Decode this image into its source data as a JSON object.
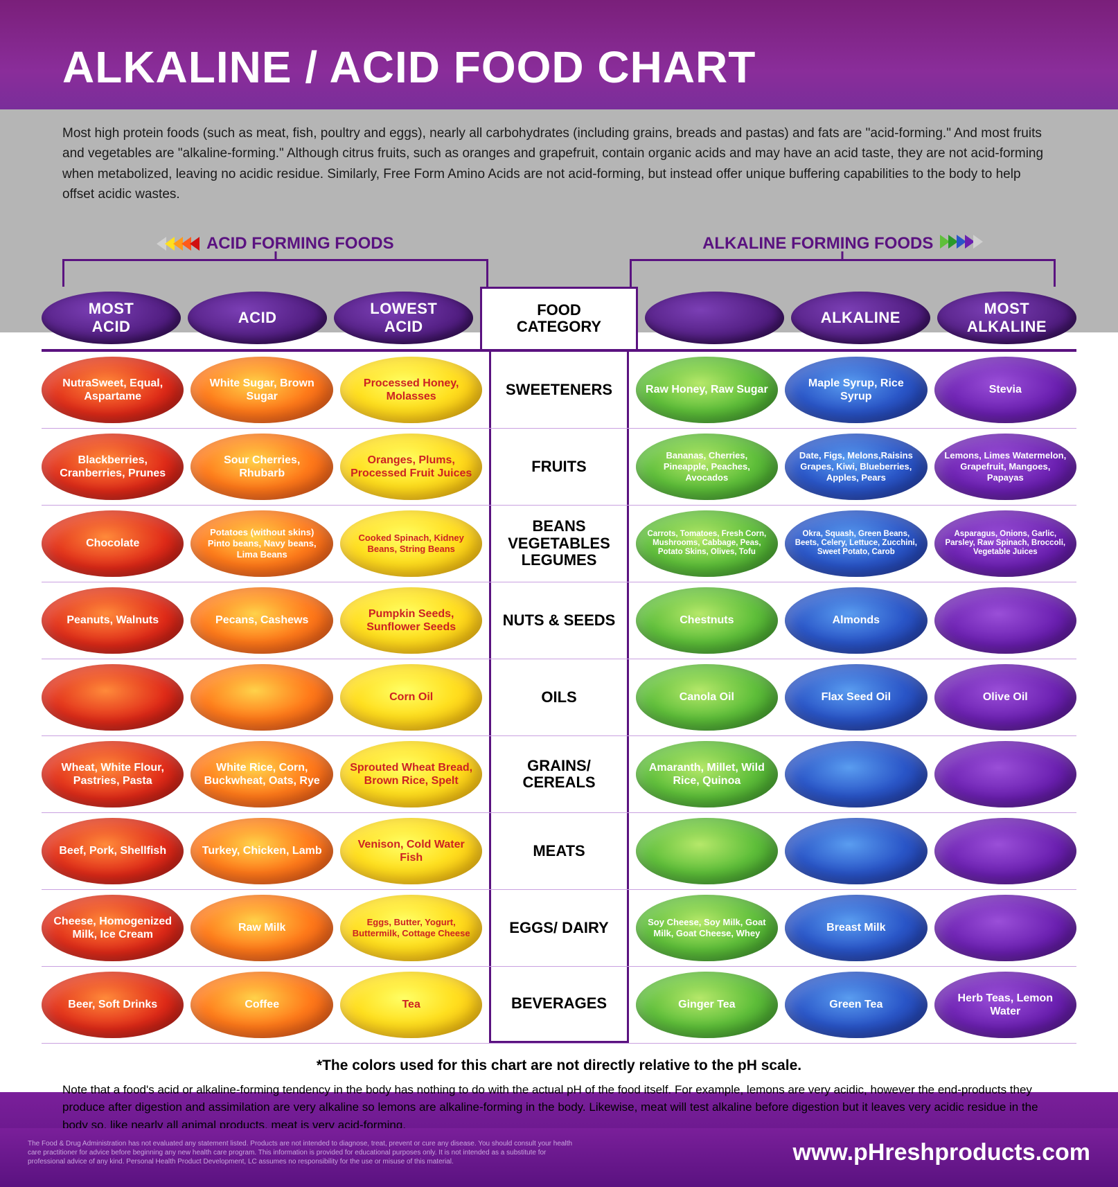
{
  "title": "ALKALINE / ACID FOOD CHART",
  "intro": "Most high protein foods (such as meat, fish, poultry and eggs), nearly all carbohydrates (including grains, breads and pastas) and fats are \"acid-forming.\" And most fruits and vegetables are \"alkaline-forming.\" Although citrus fruits, such as oranges and grapefruit, contain organic acids and may have an acid taste, they are not acid-forming when metabolized, leaving no acidic residue. Similarly, Free Form Amino Acids are not acid-forming, but instead offer unique buffering capabilities to the body to help offset acidic wastes.",
  "section_acid_label": "ACID FORMING FOODS",
  "section_alk_label": "ALKALINE FORMING FOODS",
  "headers": {
    "most_acid": "MOST\nACID",
    "acid": "ACID",
    "lowest_acid": "LOWEST\nACID",
    "category": "FOOD\nCATEGORY",
    "lowest_alk": "",
    "alkaline": "ALKALINE",
    "most_alkaline": "MOST\nALKALINE"
  },
  "colors": {
    "most_acid": {
      "bg": "radial-gradient(ellipse at 45% 40%, #ff8a3a 0%, #e02a18 55%, #b01010 100%)",
      "fg": "#ffffff"
    },
    "acid": {
      "bg": "radial-gradient(ellipse at 45% 40%, #ffd24a 0%, #ff7a1a 50%, #e84a12 100%)",
      "fg": "#ffffff"
    },
    "lowest_acid": {
      "bg": "radial-gradient(ellipse at 45% 40%, #ffff66 0%, #ffe020 45%, #ffb000 100%)",
      "fg": "#c22"
    },
    "lowest_alk": {
      "bg": "radial-gradient(ellipse at 45% 40%, #b6e86a 0%, #5fbf3a 50%, #2e8f22 100%)",
      "fg": "#ffffff"
    },
    "alkaline": {
      "bg": "radial-gradient(ellipse at 45% 40%, #5a9df0 0%, #2a56c8 50%, #1a2e9a 100%)",
      "fg": "#ffffff"
    },
    "most_alkaline": {
      "bg": "radial-gradient(ellipse at 45% 40%, #9a4fd8 0%, #6a1fb0 55%, #4a0f80 100%)",
      "fg": "#ffffff"
    }
  },
  "arrow_colors_acid": [
    "#d0d0d0",
    "#ffe020",
    "#ff9a1a",
    "#ff5a1a",
    "#d01010"
  ],
  "arrow_colors_alk": [
    "#5fbf3a",
    "#2a9a2a",
    "#2a56c8",
    "#6a1fb0",
    "#d0d0d0"
  ],
  "rows": [
    {
      "cat": "SWEETENERS",
      "cells": [
        "NutraSweet, Equal, Aspartame",
        "White Sugar, Brown Sugar",
        "Processed Honey, Molasses",
        "Raw Honey, Raw Sugar",
        "Maple Syrup, Rice Syrup",
        "Stevia"
      ]
    },
    {
      "cat": "FRUITS",
      "cells": [
        "Blackberries, Cranberries, Prunes",
        "Sour Cherries, Rhubarb",
        "Oranges, Plums, Processed Fruit Juices",
        "Bananas, Cherries, Pineapple, Peaches,  Avocados",
        "Date, Figs, Melons,Raisins Grapes, Kiwi, Blueberries, Apples, Pears",
        "Lemons, Limes Watermelon, Grapefruit, Mangoes, Papayas"
      ]
    },
    {
      "cat": "BEANS VEGETABLES LEGUMES",
      "cells": [
        "Chocolate",
        "Potatoes (without skins) Pinto beans, Navy beans, Lima Beans",
        "Cooked Spinach, Kidney Beans, String Beans",
        "Carrots, Tomatoes, Fresh Corn, Mushrooms, Cabbage, Peas, Potato Skins, Olives, Tofu",
        "Okra, Squash, Green Beans, Beets, Celery, Lettuce, Zucchini, Sweet Potato, Carob",
        "Asparagus, Onions, Garlic, Parsley, Raw Spinach, Broccoli, Vegetable Juices"
      ]
    },
    {
      "cat": "NUTS & SEEDS",
      "cells": [
        "Peanuts, Walnuts",
        "Pecans, Cashews",
        "Pumpkin Seeds, Sunflower Seeds",
        "Chestnuts",
        "Almonds",
        ""
      ]
    },
    {
      "cat": "OILS",
      "cells": [
        "",
        "",
        "Corn Oil",
        "Canola Oil",
        "Flax Seed Oil",
        "Olive Oil"
      ]
    },
    {
      "cat": "GRAINS/ CEREALS",
      "cells": [
        "Wheat, White Flour, Pastries, Pasta",
        "White Rice, Corn, Buckwheat, Oats, Rye",
        "Sprouted Wheat Bread, Brown Rice, Spelt",
        "Amaranth, Millet, Wild Rice, Quinoa",
        "",
        ""
      ]
    },
    {
      "cat": "MEATS",
      "cells": [
        "Beef, Pork, Shellfish",
        "Turkey, Chicken, Lamb",
        "Venison, Cold Water Fish",
        "",
        "",
        ""
      ]
    },
    {
      "cat": "EGGS/ DAIRY",
      "cells": [
        "Cheese, Homogenized Milk, Ice Cream",
        "Raw Milk",
        "Eggs, Butter, Yogurt, Buttermilk, Cottage Cheese",
        "Soy Cheese, Soy Milk, Goat Milk, Goat Cheese, Whey",
        "Breast Milk",
        ""
      ]
    },
    {
      "cat": "BEVERAGES",
      "cells": [
        "Beer, Soft Drinks",
        "Coffee",
        "Tea",
        "Ginger Tea",
        "Green Tea",
        "Herb Teas, Lemon Water"
      ]
    }
  ],
  "footnote": "*The colors used for this chart are not directly relative to the pH scale.",
  "note": "Note that a food's acid or alkaline-forming tendency in the body has nothing to do with the actual pH of the food itself. For example, lemons are very acidic, however the end-products they produce after digestion and assimilation are very alkaline so lemons are alkaline-forming in the body. Likewise, meat will test alkaline before digestion but it leaves very acidic residue in the body so, like nearly all animal products, meat is very acid-forming.",
  "disclaimer": "The Food & Drug Administration has not evaluated any statement listed. Products are not intended to diagnose, treat, prevent or cure any disease. You should consult your health care practitioner for advice before beginning any new health care program. This information is provided for educational purposes only. It is not intended as a substitute for professional advice of any kind. Personal Health Product Development, LC assumes no responsibility for the use or misuse of this material.",
  "url": "www.pHreshproducts.com"
}
